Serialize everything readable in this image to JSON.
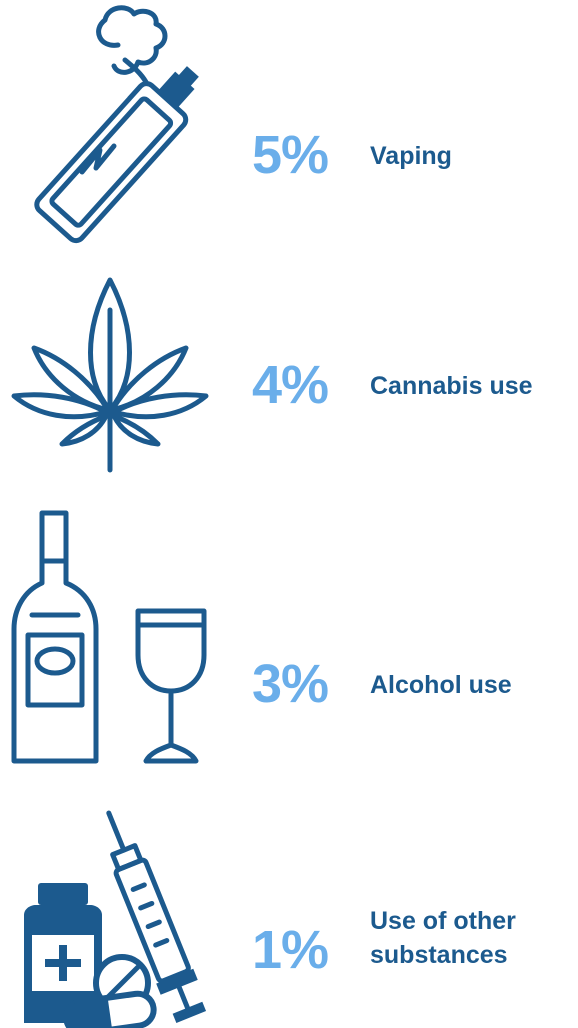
{
  "items": [
    {
      "percent": "5%",
      "label": "Vaping",
      "icon": "vape-pen-icon"
    },
    {
      "percent": "4%",
      "label": "Cannabis use",
      "icon": "cannabis-leaf-icon"
    },
    {
      "percent": "3%",
      "label": "Alcohol use",
      "icon": "bottle-and-glass-icon"
    },
    {
      "percent": "1%",
      "label": "Use of other substances",
      "icon": "pills-and-syringe-icon"
    }
  ],
  "colors": {
    "percent": "#6aaeea",
    "label": "#1c5a8e",
    "icon": "#1c5a8e"
  }
}
